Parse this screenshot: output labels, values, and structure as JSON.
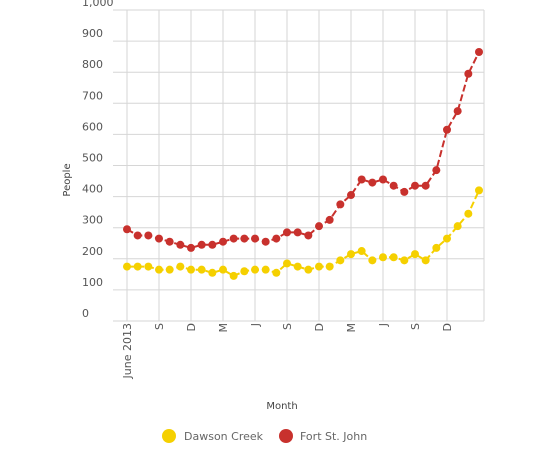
{
  "chart_data": {
    "type": "line",
    "xlabel": "Month",
    "ylabel": "People",
    "ylim": [
      0,
      1000
    ],
    "yticks": [
      0,
      100,
      200,
      300,
      400,
      500,
      600,
      700,
      800,
      900,
      1000
    ],
    "ytick_labels": [
      "0",
      "100",
      "200",
      "300",
      "400",
      "500",
      "600",
      "700",
      "800",
      "900",
      "1,000"
    ],
    "x_tick_labels": [
      {
        "index": 0,
        "label": "June 2013"
      },
      {
        "index": 3,
        "label": "S"
      },
      {
        "index": 6,
        "label": "D"
      },
      {
        "index": 9,
        "label": "M"
      },
      {
        "index": 12,
        "label": "J"
      },
      {
        "index": 15,
        "label": "S"
      },
      {
        "index": 18,
        "label": "D"
      },
      {
        "index": 21,
        "label": "M"
      },
      {
        "index": 24,
        "label": "J"
      },
      {
        "index": 27,
        "label": "S"
      },
      {
        "index": 30,
        "label": "D"
      }
    ],
    "n_points": 34,
    "grid": true,
    "legend_position": "bottom",
    "series": [
      {
        "name": "Dawson Creek",
        "color": "#f5d000",
        "values": [
          175,
          175,
          175,
          165,
          165,
          175,
          165,
          165,
          155,
          165,
          145,
          160,
          165,
          165,
          155,
          185,
          175,
          165,
          175,
          175,
          195,
          215,
          225,
          195,
          205,
          205,
          195,
          215,
          195,
          235,
          265,
          305,
          345,
          420
        ]
      },
      {
        "name": "Fort St. John",
        "color": "#c8312d",
        "values": [
          295,
          275,
          275,
          265,
          255,
          245,
          235,
          245,
          245,
          255,
          265,
          265,
          265,
          255,
          265,
          285,
          285,
          275,
          305,
          325,
          375,
          405,
          455,
          445,
          455,
          435,
          415,
          435,
          435,
          485,
          615,
          675,
          795,
          865
        ]
      }
    ]
  }
}
